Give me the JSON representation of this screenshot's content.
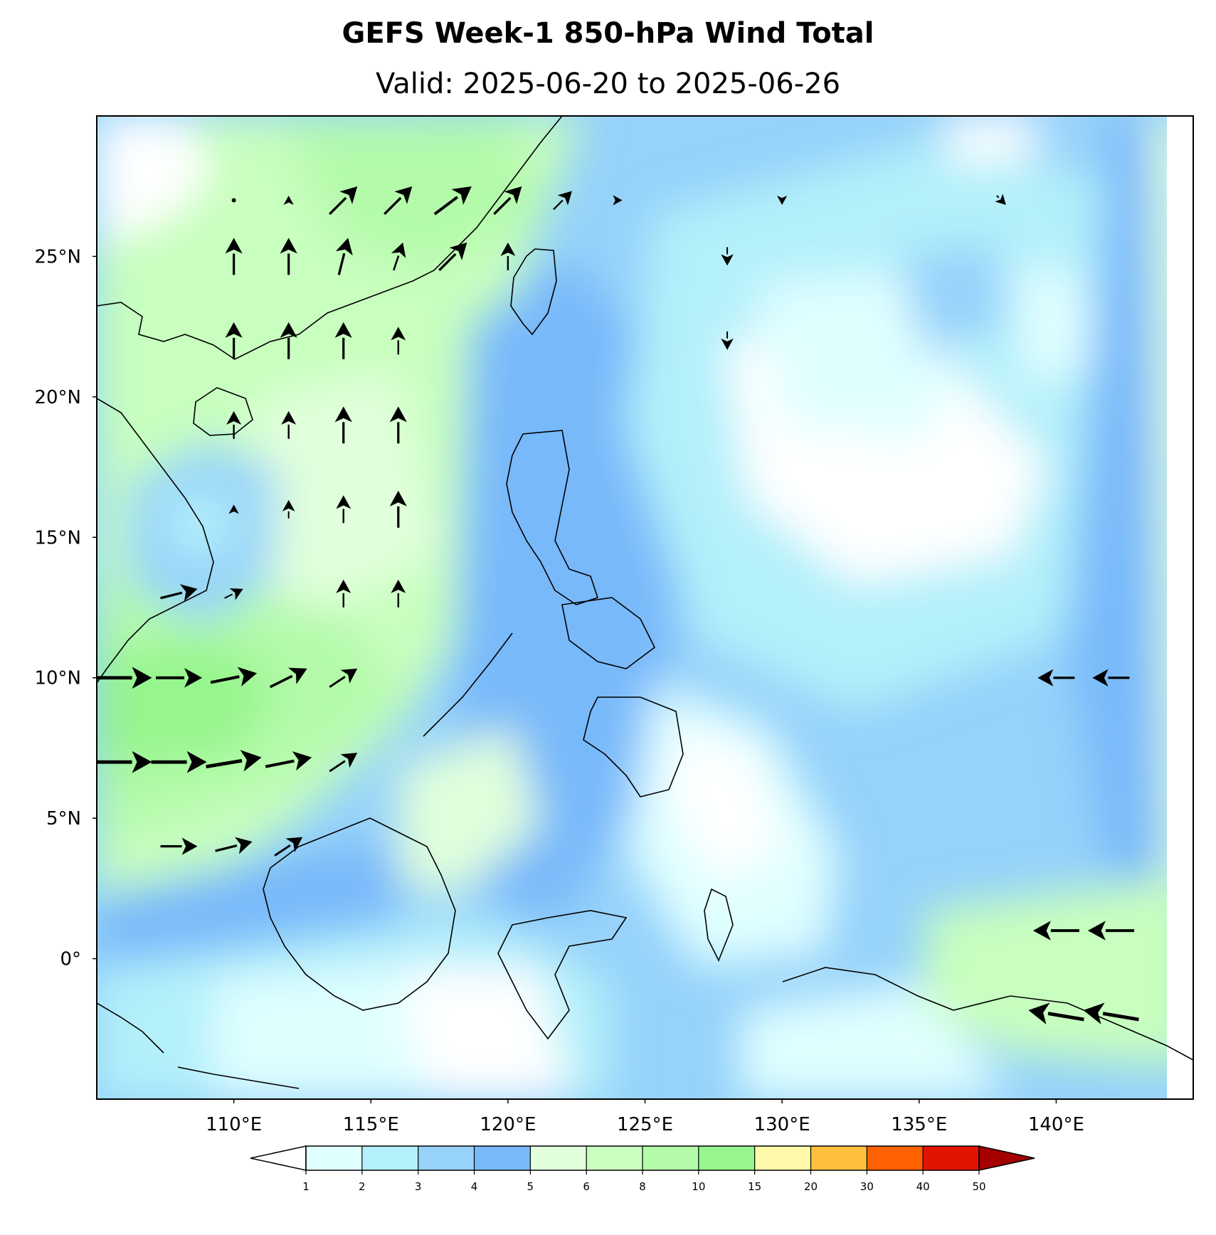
{
  "title": "GEFS Week-1 850-hPa Wind Total",
  "subtitle": "Valid: 2025-06-20 to 2025-06-26",
  "map": {
    "lon_range": [
      105,
      145
    ],
    "lat_range": [
      -5,
      30
    ],
    "lat_ticks": [
      {
        "value": 25,
        "label": "25°N"
      },
      {
        "value": 20,
        "label": "20°N"
      },
      {
        "value": 15,
        "label": "15°N"
      },
      {
        "value": 10,
        "label": "10°N"
      },
      {
        "value": 5,
        "label": "5°N"
      },
      {
        "value": 0,
        "label": "0°"
      }
    ],
    "lon_ticks": [
      {
        "value": 110,
        "label": "110°E"
      },
      {
        "value": 115,
        "label": "115°E"
      },
      {
        "value": 120,
        "label": "120°E"
      },
      {
        "value": 125,
        "label": "125°E"
      },
      {
        "value": 130,
        "label": "130°E"
      },
      {
        "value": 135,
        "label": "135°E"
      },
      {
        "value": 140,
        "label": "140°E"
      }
    ]
  },
  "colorbar": {
    "levels": [
      "1",
      "2",
      "3",
      "4",
      "5",
      "6",
      "8",
      "10",
      "15",
      "20",
      "30",
      "40",
      "50"
    ],
    "colors": [
      "#e0ffff",
      "#b4f0fa",
      "#96d2fa",
      "#78b9fa",
      "#e1ffdc",
      "#c8ffbe",
      "#b4faaa",
      "#96f58c",
      "#fffaaa",
      "#ffc03c",
      "#ff6000",
      "#e11400",
      "#a50000"
    ],
    "under_color": "#ffffff",
    "over_color": "#a50000"
  },
  "colors": {
    "ocean_white": "#ffffff",
    "coast": "#000000",
    "arrow": "#000000"
  },
  "chart_data": {
    "type": "vector_field",
    "variable": "850-hPa wind speed (m/s) with wind vectors",
    "fill_regions": [
      {
        "name": "south-china-sea-monsoon",
        "level": "8-10",
        "center_lon": 108,
        "center_lat": 8
      },
      {
        "name": "philippine-sea-calm",
        "level": "0-1",
        "center_lon": 131,
        "center_lat": 17
      },
      {
        "name": "maritime-continent",
        "level": "1-3",
        "center_lon": 120,
        "center_lat": 0
      }
    ],
    "vectors": [
      {
        "lon": 110,
        "lat": 27,
        "u": 0,
        "v": 0
      },
      {
        "lon": 112,
        "lat": 27,
        "u": 0,
        "v": 1
      },
      {
        "lon": 114,
        "lat": 27,
        "u": 3,
        "v": 3
      },
      {
        "lon": 116,
        "lat": 27,
        "u": 3,
        "v": 3
      },
      {
        "lon": 118,
        "lat": 27,
        "u": 4,
        "v": 3
      },
      {
        "lon": 120,
        "lat": 27,
        "u": 3,
        "v": 3
      },
      {
        "lon": 122,
        "lat": 27,
        "u": 2,
        "v": 2
      },
      {
        "lon": 124,
        "lat": 27,
        "u": 1,
        "v": 0
      },
      {
        "lon": 130,
        "lat": 27,
        "u": 0,
        "v": -1
      },
      {
        "lon": 138,
        "lat": 27,
        "u": 1,
        "v": -1
      },
      {
        "lon": 110,
        "lat": 25,
        "u": 0,
        "v": 4
      },
      {
        "lon": 112,
        "lat": 25,
        "u": 0,
        "v": 4
      },
      {
        "lon": 114,
        "lat": 25,
        "u": 1,
        "v": 4
      },
      {
        "lon": 116,
        "lat": 25,
        "u": 1,
        "v": 3
      },
      {
        "lon": 118,
        "lat": 25,
        "u": 3,
        "v": 3
      },
      {
        "lon": 120,
        "lat": 25,
        "u": 0,
        "v": 3
      },
      {
        "lon": 128,
        "lat": 25,
        "u": 0,
        "v": -2
      },
      {
        "lon": 110,
        "lat": 22,
        "u": 0,
        "v": 4
      },
      {
        "lon": 112,
        "lat": 22,
        "u": 0,
        "v": 4
      },
      {
        "lon": 114,
        "lat": 22,
        "u": 0,
        "v": 4
      },
      {
        "lon": 116,
        "lat": 22,
        "u": 0,
        "v": 3
      },
      {
        "lon": 128,
        "lat": 22,
        "u": 0,
        "v": -2
      },
      {
        "lon": 110,
        "lat": 19,
        "u": 0,
        "v": 3
      },
      {
        "lon": 112,
        "lat": 19,
        "u": 0,
        "v": 3
      },
      {
        "lon": 114,
        "lat": 19,
        "u": 0,
        "v": 4
      },
      {
        "lon": 116,
        "lat": 19,
        "u": 0,
        "v": 4
      },
      {
        "lon": 110,
        "lat": 16,
        "u": 0,
        "v": 1
      },
      {
        "lon": 112,
        "lat": 16,
        "u": 0,
        "v": 2
      },
      {
        "lon": 114,
        "lat": 16,
        "u": 0,
        "v": 3
      },
      {
        "lon": 116,
        "lat": 16,
        "u": 0,
        "v": 4
      },
      {
        "lon": 108,
        "lat": 13,
        "u": 4,
        "v": 1
      },
      {
        "lon": 110,
        "lat": 13,
        "u": 2,
        "v": 1
      },
      {
        "lon": 114,
        "lat": 13,
        "u": 0,
        "v": 3
      },
      {
        "lon": 116,
        "lat": 13,
        "u": 0,
        "v": 3
      },
      {
        "lon": 106,
        "lat": 10,
        "u": 6,
        "v": 0
      },
      {
        "lon": 108,
        "lat": 10,
        "u": 5,
        "v": 0
      },
      {
        "lon": 110,
        "lat": 10,
        "u": 5,
        "v": 1
      },
      {
        "lon": 112,
        "lat": 10,
        "u": 4,
        "v": 2
      },
      {
        "lon": 114,
        "lat": 10,
        "u": 3,
        "v": 2
      },
      {
        "lon": 106,
        "lat": 7,
        "u": 6,
        "v": 0
      },
      {
        "lon": 108,
        "lat": 7,
        "u": 6,
        "v": 0
      },
      {
        "lon": 110,
        "lat": 7,
        "u": 6,
        "v": 1
      },
      {
        "lon": 112,
        "lat": 7,
        "u": 5,
        "v": 1
      },
      {
        "lon": 114,
        "lat": 7,
        "u": 3,
        "v": 2
      },
      {
        "lon": 108,
        "lat": 4,
        "u": 4,
        "v": 0
      },
      {
        "lon": 110,
        "lat": 4,
        "u": 4,
        "v": 1
      },
      {
        "lon": 112,
        "lat": 4,
        "u": 3,
        "v": 2
      },
      {
        "lon": 140,
        "lat": 10,
        "u": -4,
        "v": 0
      },
      {
        "lon": 142,
        "lat": 10,
        "u": -4,
        "v": 0
      },
      {
        "lon": 140,
        "lat": 1,
        "u": -5,
        "v": 0
      },
      {
        "lon": 142,
        "lat": 1,
        "u": -5,
        "v": 0
      },
      {
        "lon": 140,
        "lat": -2,
        "u": -6,
        "v": 1
      },
      {
        "lon": 142,
        "lat": -2,
        "u": -6,
        "v": 1
      }
    ]
  }
}
